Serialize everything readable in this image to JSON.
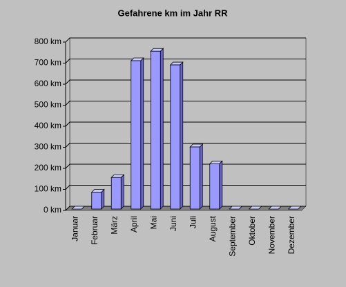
{
  "chart_data": {
    "type": "bar3d",
    "title": "Gefahrene km im Jahr RR",
    "categories": [
      "Januar",
      "Februar",
      "März",
      "April",
      "Mai",
      "Juni",
      "Juli",
      "August",
      "September",
      "Oktober",
      "November",
      "Dezember"
    ],
    "values": [
      0,
      80,
      150,
      705,
      750,
      685,
      295,
      215,
      0,
      0,
      0,
      0
    ],
    "color": "#9999ff",
    "ylim": [
      0,
      800
    ],
    "yticks": [
      {
        "value": 0,
        "label": "0 km"
      },
      {
        "value": 100,
        "label": "100 km"
      },
      {
        "value": 200,
        "label": "200 km"
      },
      {
        "value": 300,
        "label": "300 km"
      },
      {
        "value": 400,
        "label": "400 km"
      },
      {
        "value": 500,
        "label": "500 km"
      },
      {
        "value": 600,
        "label": "600 km"
      },
      {
        "value": 700,
        "label": "700 km"
      },
      {
        "value": 800,
        "label": "800 km"
      }
    ],
    "grid": true
  }
}
